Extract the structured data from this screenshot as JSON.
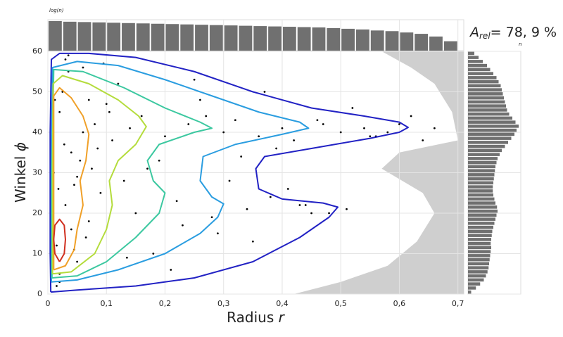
{
  "chart_data": {
    "type": "scatter",
    "xlabel": {
      "text": "Radius",
      "symbol": "r"
    },
    "ylabel": {
      "text": "Winkel",
      "symbol": "ϕ"
    },
    "annotation": {
      "symbol": "A",
      "subscript": "rel",
      "text": "= 78, 9 %"
    },
    "xlim": [
      0,
      0.71
    ],
    "ylim": [
      0,
      60
    ],
    "xticks": [
      0,
      {
        "value": 0.1,
        "label": "0,1"
      },
      {
        "value": 0.2,
        "label": "0,2"
      },
      {
        "value": 0.3,
        "label": "0,3"
      },
      {
        "value": 0.4,
        "label": "0,4"
      },
      {
        "value": 0.5,
        "label": "0,5"
      },
      {
        "value": 0.6,
        "label": "0,6"
      },
      {
        "value": 0.7,
        "label": "0,7"
      }
    ],
    "yticks": [
      0,
      10,
      20,
      30,
      40,
      50,
      60
    ],
    "grid": true,
    "outside_region": {
      "color": "#cfcfcf",
      "x": [
        0.42,
        0.5,
        0.58,
        0.63,
        0.66,
        0.64,
        0.57,
        0.6,
        0.7,
        0.69,
        0.66,
        0.62,
        0.57
      ],
      "y": [
        0,
        3,
        7,
        13,
        20,
        25,
        31,
        35,
        38,
        45,
        52,
        56,
        60
      ]
    },
    "points": {
      "color": "#000000",
      "x": [
        0.01,
        0.02,
        0.015,
        0.03,
        0.025,
        0.04,
        0.05,
        0.035,
        0.06,
        0.045,
        0.07,
        0.08,
        0.02,
        0.03,
        0.055,
        0.09,
        0.1,
        0.11,
        0.065,
        0.12,
        0.13,
        0.14,
        0.15,
        0.085,
        0.16,
        0.18,
        0.2,
        0.095,
        0.22,
        0.24,
        0.17,
        0.26,
        0.28,
        0.3,
        0.21,
        0.32,
        0.34,
        0.25,
        0.36,
        0.38,
        0.4,
        0.29,
        0.42,
        0.44,
        0.46,
        0.33,
        0.48,
        0.5,
        0.52,
        0.37,
        0.54,
        0.56,
        0.58,
        0.6,
        0.45,
        0.62,
        0.64,
        0.41,
        0.66,
        0.02,
        0.04,
        0.012,
        0.018,
        0.028,
        0.008,
        0.06,
        0.075,
        0.105,
        0.135,
        0.19,
        0.23,
        0.27,
        0.31,
        0.35,
        0.39,
        0.43,
        0.47,
        0.51,
        0.55,
        0.015,
        0.035,
        0.045,
        0.05,
        0.07
      ],
      "y": [
        30,
        45,
        12,
        22,
        50,
        35,
        8,
        55,
        40,
        27,
        18,
        42,
        5,
        58,
        33,
        25,
        47,
        38,
        14,
        52,
        28,
        41,
        20,
        36,
        44,
        10,
        39,
        57,
        23,
        42,
        31,
        48,
        19,
        40,
        6,
        43,
        21,
        53,
        39,
        24,
        41,
        15,
        38,
        22,
        43,
        34,
        20,
        40,
        46,
        50,
        41,
        39,
        40,
        42,
        20,
        44,
        38,
        26,
        41,
        3,
        16,
        48,
        26,
        37,
        20,
        56,
        31,
        45,
        9,
        33,
        17,
        44,
        28,
        13,
        36,
        22,
        42,
        21,
        39,
        2,
        59,
        11,
        29,
        48
      ]
    },
    "contours": [
      {
        "color": "#2222c4",
        "x": [
          0.005,
          0.05,
          0.15,
          0.25,
          0.35,
          0.43,
          0.48,
          0.495,
          0.47,
          0.4,
          0.36,
          0.355,
          0.37,
          0.45,
          0.55,
          0.6,
          0.615,
          0.6,
          0.54,
          0.45,
          0.35,
          0.25,
          0.15,
          0.07,
          0.02,
          0.006,
          0.004,
          0.004,
          0.005
        ],
        "y": [
          0.5,
          1,
          2,
          4,
          8,
          14,
          19,
          21.5,
          22.5,
          23.5,
          26,
          31,
          34,
          36,
          38.5,
          40,
          41.2,
          42.5,
          44,
          46,
          50,
          55,
          58.5,
          59.5,
          59.5,
          58,
          40,
          10,
          0.5
        ]
      },
      {
        "color": "#2a9de0",
        "x": [
          0.006,
          0.05,
          0.12,
          0.2,
          0.26,
          0.29,
          0.3,
          0.28,
          0.26,
          0.265,
          0.32,
          0.4,
          0.445,
          0.43,
          0.36,
          0.28,
          0.2,
          0.12,
          0.05,
          0.008,
          0.006,
          0.006
        ],
        "y": [
          3,
          3.5,
          6,
          10,
          15,
          19,
          22.3,
          24,
          28,
          34,
          37,
          39.5,
          41,
          42.5,
          45,
          49,
          53,
          56.5,
          57.5,
          56,
          30,
          3
        ]
      },
      {
        "color": "#3cc8a0",
        "x": [
          0.007,
          0.05,
          0.1,
          0.15,
          0.19,
          0.2,
          0.18,
          0.17,
          0.19,
          0.25,
          0.28,
          0.26,
          0.2,
          0.13,
          0.06,
          0.01,
          0.007,
          0.007
        ],
        "y": [
          4,
          4.5,
          8,
          14,
          20,
          25,
          28,
          33,
          37,
          40,
          41,
          42.5,
          46,
          51,
          55,
          55.5,
          30,
          4
        ]
      },
      {
        "color": "#b4dc3c",
        "x": [
          0.008,
          0.04,
          0.08,
          0.1,
          0.11,
          0.105,
          0.12,
          0.15,
          0.168,
          0.155,
          0.12,
          0.07,
          0.025,
          0.009,
          0.008,
          0.008
        ],
        "y": [
          5,
          5.5,
          10,
          16,
          22,
          28,
          33,
          37,
          41.4,
          44,
          48,
          52,
          54,
          52,
          30,
          5
        ]
      },
      {
        "color": "#f0a028",
        "x": [
          0.01,
          0.03,
          0.045,
          0.05,
          0.06,
          0.055,
          0.065,
          0.07,
          0.06,
          0.04,
          0.02,
          0.01,
          0.01,
          0.01
        ],
        "y": [
          6,
          7,
          11,
          16,
          22,
          28,
          33,
          39.5,
          44,
          48.5,
          51,
          49,
          30,
          6
        ]
      },
      {
        "color": "#d03020",
        "x": [
          0.02,
          0.028,
          0.03,
          0.028,
          0.02,
          0.012,
          0.01,
          0.012,
          0.02
        ],
        "y": [
          8,
          10,
          13.5,
          17,
          18.5,
          17,
          13.5,
          10,
          8
        ]
      }
    ],
    "top_histogram": {
      "label": "log(n)",
      "color": "#707070",
      "ylim": [
        0,
        4.6
      ],
      "bins": [
        0,
        0.025,
        0.05,
        0.075,
        0.1,
        0.125,
        0.15,
        0.175,
        0.2,
        0.225,
        0.25,
        0.275,
        0.3,
        0.325,
        0.35,
        0.375,
        0.4,
        0.425,
        0.45,
        0.475,
        0.5,
        0.525,
        0.55,
        0.575,
        0.6,
        0.625,
        0.65,
        0.675,
        0.7
      ],
      "values": [
        4.4,
        4.3,
        4.25,
        4.2,
        4.15,
        4.1,
        4.05,
        4.0,
        3.95,
        3.9,
        3.85,
        3.8,
        3.75,
        3.7,
        3.65,
        3.6,
        3.55,
        3.5,
        3.45,
        3.35,
        3.25,
        3.15,
        3.0,
        2.9,
        2.7,
        2.5,
        2.1,
        1.4
      ]
    },
    "right_histogram": {
      "label": "n",
      "color": "#707070",
      "xlim": [
        0,
        1000
      ],
      "bins": [
        0,
        1,
        2,
        3,
        4,
        5,
        6,
        7,
        8,
        9,
        10,
        11,
        12,
        13,
        14,
        15,
        16,
        17,
        18,
        19,
        20,
        21,
        22,
        23,
        24,
        25,
        26,
        27,
        28,
        29,
        30,
        31,
        32,
        33,
        34,
        35,
        36,
        37,
        38,
        39,
        40,
        41,
        42,
        43,
        44,
        45,
        46,
        47,
        48,
        49,
        50,
        51,
        52,
        53,
        54,
        55,
        56,
        57,
        58,
        59,
        60
      ],
      "values": [
        60,
        150,
        230,
        300,
        340,
        370,
        390,
        400,
        410,
        420,
        430,
        440,
        430,
        440,
        450,
        460,
        480,
        500,
        520,
        540,
        560,
        550,
        520,
        500,
        480,
        470,
        470,
        480,
        490,
        500,
        510,
        520,
        540,
        560,
        600,
        640,
        700,
        760,
        820,
        880,
        920,
        960,
        900,
        840,
        780,
        740,
        720,
        700,
        680,
        660,
        640,
        620,
        580,
        540,
        480,
        420,
        360,
        280,
        200,
        120
      ]
    }
  }
}
